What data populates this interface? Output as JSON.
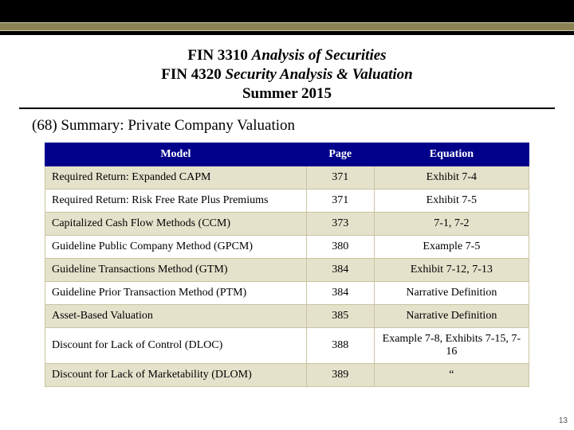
{
  "header": {
    "course1_code": "FIN 3310",
    "course1_title": "Analysis of Securities",
    "course2_code": "FIN 4320",
    "course2_title": "Security Analysis & Valuation",
    "term": "Summer 2015"
  },
  "section_title": "(68) Summary: Private Company Valuation",
  "table": {
    "columns": [
      "Model",
      "Page",
      "Equation"
    ],
    "rows": [
      {
        "model": "Required Return: Expanded CAPM",
        "page": "371",
        "equation": "Exhibit 7-4"
      },
      {
        "model": "Required Return: Risk Free Rate Plus Premiums",
        "page": "371",
        "equation": "Exhibit 7-5"
      },
      {
        "model": "Capitalized Cash Flow Methods (CCM)",
        "page": "373",
        "equation": "7-1, 7-2"
      },
      {
        "model": "Guideline Public Company Method (GPCM)",
        "page": "380",
        "equation": "Example 7-5"
      },
      {
        "model": "Guideline Transactions Method (GTM)",
        "page": "384",
        "equation": "Exhibit 7-12, 7-13"
      },
      {
        "model": "Guideline Prior Transaction Method (PTM)",
        "page": "384",
        "equation": "Narrative Definition"
      },
      {
        "model": "Asset-Based Valuation",
        "page": "385",
        "equation": "Narrative Definition"
      },
      {
        "model": "Discount for Lack of Control (DLOC)",
        "page": "388",
        "equation": "Example 7-8, Exhibits 7-15, 7-16"
      },
      {
        "model": "Discount for Lack of Marketability (DLOM)",
        "page": "389",
        "equation": "“"
      }
    ]
  },
  "colors": {
    "header_bg": "#00008b",
    "header_text": "#ffffff",
    "row_alt_bg": "#e5e2cc",
    "row_bg": "#ffffff",
    "border": "#c9c3a0",
    "top_band": "#000000",
    "olive_strip": "#8a8252"
  },
  "page_number": "13"
}
